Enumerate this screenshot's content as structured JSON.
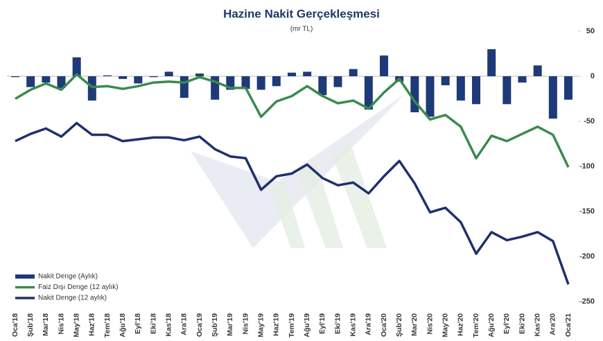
{
  "chart_data": {
    "type": "combo",
    "title": "Hazine Nakit Gerçekleşmesi",
    "subtitle": "(mr TL)",
    "categories": [
      "Oca'18",
      "Şub'18",
      "Mar'18",
      "Nis'18",
      "May'18",
      "Haz'18",
      "Tem'18",
      "Ağu'18",
      "Eyl'18",
      "Eki'18",
      "Kas'18",
      "Ara'18",
      "Oca'19",
      "Şub'19",
      "Mar'19",
      "Nis'19",
      "May'19",
      "Haz'19",
      "Tem'19",
      "Ağu'19",
      "Eyl'19",
      "Eki'19",
      "Kas'19",
      "Ara'19",
      "Oca'20",
      "Şub'20",
      "Mar'20",
      "Nis'20",
      "May'20",
      "Haz'20",
      "Tem'20",
      "Ağu'20",
      "Eyl'20",
      "Eki'20",
      "Kas'20",
      "Ara'20",
      "Oca'21"
    ],
    "series": [
      {
        "name": "Nakit Denge (Aylık)",
        "kind": "bar",
        "color": "#1f3a78",
        "values": [
          -1,
          -12,
          -7,
          -13,
          21,
          -27,
          1,
          -3,
          -8,
          -1,
          5,
          -24,
          3,
          -26,
          -15,
          -14,
          -15,
          -11,
          4,
          5,
          -21,
          -12,
          8,
          -37,
          23,
          -6,
          -40,
          -45,
          -10,
          -27,
          -31,
          30,
          -31,
          -7,
          12,
          -47,
          -26
        ]
      },
      {
        "name": "Faiz Dışı Denge (12 aylık)",
        "kind": "line",
        "color": "#3a8a4e",
        "values": [
          -25,
          -15,
          -8,
          -15,
          2,
          -12,
          -11,
          -14,
          -11,
          -7,
          -6,
          -7,
          -1,
          -6,
          -13,
          -13,
          -45,
          -28,
          -22,
          -11,
          -22,
          -30,
          -27,
          -36,
          -18,
          -3,
          -28,
          -48,
          -43,
          -56,
          -91,
          -66,
          -72,
          -64,
          -56,
          -65,
          -101
        ]
      },
      {
        "name": "Nakit Denge (12 aylık)",
        "kind": "line",
        "color": "#1f2f6e",
        "values": [
          -72,
          -64,
          -58,
          -67,
          -52,
          -65,
          -65,
          -72,
          -70,
          -68,
          -68,
          -71,
          -67,
          -81,
          -89,
          -91,
          -126,
          -111,
          -108,
          -98,
          -113,
          -121,
          -118,
          -130,
          -111,
          -94,
          -119,
          -151,
          -146,
          -162,
          -197,
          -173,
          -182,
          -178,
          -173,
          -183,
          -231
        ]
      }
    ],
    "ylim": [
      -260,
      62
    ],
    "yticks": [
      -250,
      -200,
      -150,
      -100,
      -50,
      0,
      50
    ],
    "grid": false,
    "legend": "bottom-left"
  }
}
